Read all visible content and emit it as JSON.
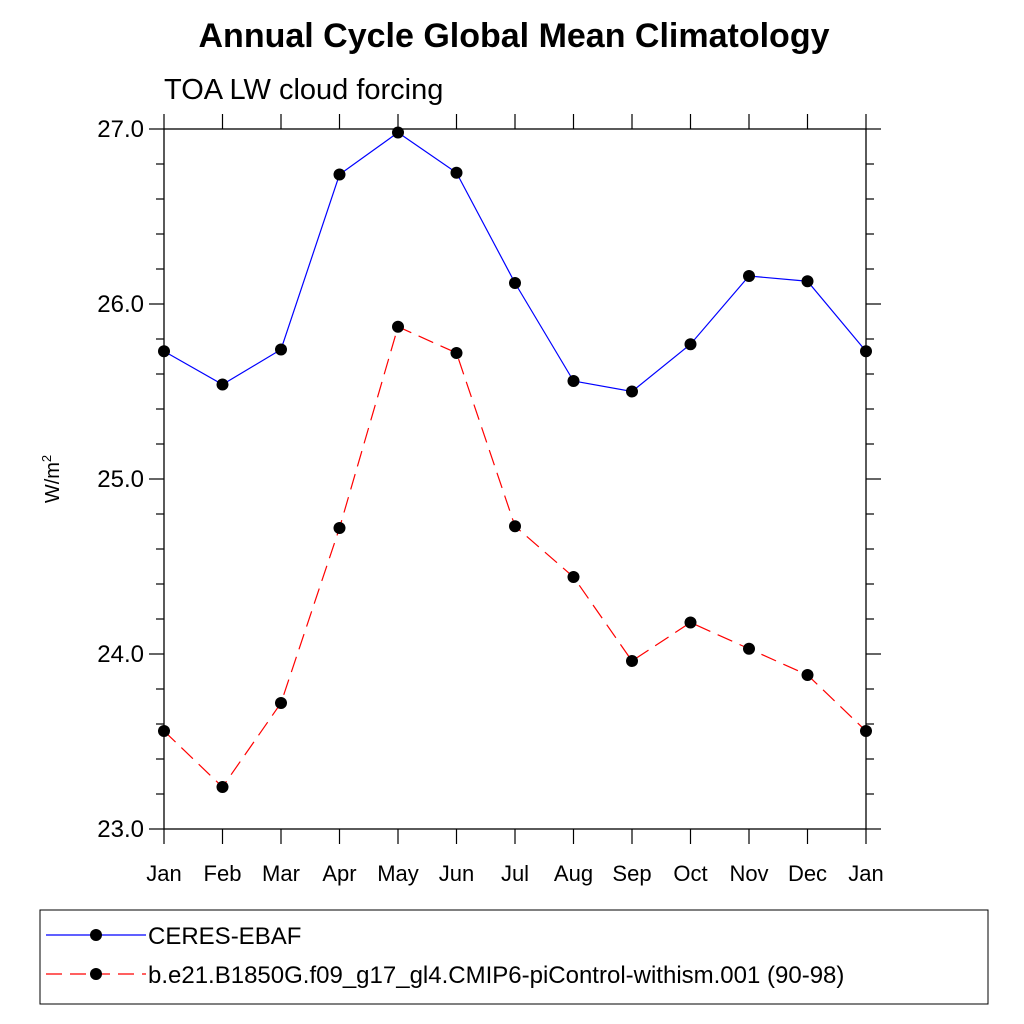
{
  "chart_data": {
    "type": "line",
    "title": "Annual Cycle Global Mean Climatology",
    "subtitle": "TOA LW cloud forcing",
    "ylabel": "W/m",
    "ylabel_superscript": "2",
    "xlabel": "",
    "ylim": [
      23.0,
      27.0
    ],
    "yticks": [
      "23.0",
      "24.0",
      "25.0",
      "26.0",
      "27.0"
    ],
    "categories": [
      "Jan",
      "Feb",
      "Mar",
      "Apr",
      "May",
      "Jun",
      "Jul",
      "Aug",
      "Sep",
      "Oct",
      "Nov",
      "Dec",
      "Jan"
    ],
    "series": [
      {
        "name": "CERES-EBAF",
        "color": "#0000ff",
        "dash": "solid",
        "marker": "filled-circle",
        "values": [
          25.73,
          25.54,
          25.74,
          26.74,
          26.98,
          26.75,
          26.12,
          25.56,
          25.5,
          25.77,
          26.16,
          26.13,
          25.73
        ]
      },
      {
        "name": "b.e21.B1850G.f09_g17_gl4.CMIP6-piControl-withism.001 (90-98)",
        "color": "#ff0000",
        "dash": "dashed",
        "marker": "filled-circle",
        "values": [
          23.56,
          23.24,
          23.72,
          24.72,
          25.87,
          25.72,
          24.73,
          24.44,
          23.96,
          24.18,
          24.03,
          23.88,
          23.56
        ]
      }
    ],
    "grid": false,
    "legend_position": "bottom"
  }
}
